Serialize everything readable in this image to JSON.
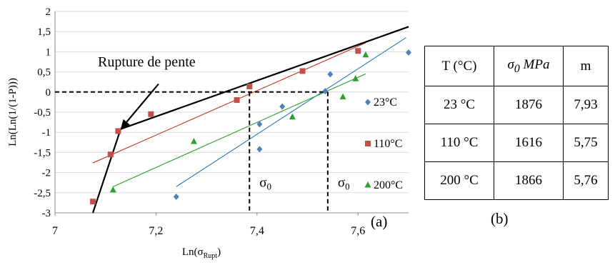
{
  "chart_data": {
    "type": "scatter",
    "xlabel": "Ln(σ",
    "xlabel_sub": "Rupt",
    "xlabel_close": ")",
    "ylabel": "Ln(Ln(1/(1-P)))",
    "xlim": [
      7,
      7.7
    ],
    "ylim": [
      -3,
      2
    ],
    "x_ticks": [
      7,
      7.2,
      7.4,
      7.6
    ],
    "x_tick_labels": [
      "7",
      "7,2",
      "7,4",
      "7,6"
    ],
    "y_ticks": [
      -3,
      -2.5,
      -2,
      -1.5,
      -1,
      -0.5,
      0,
      0.5,
      1,
      1.5,
      2
    ],
    "y_tick_labels": [
      "-3",
      "-2,5",
      "-2",
      "-1,5",
      "-1",
      "-0,5",
      "0",
      "0,5",
      "1",
      "1,5",
      "2"
    ],
    "grid": "horizontal",
    "legend": "right",
    "series": [
      {
        "name": "23°C",
        "marker": "diamond",
        "color": "#4f81bd",
        "points": [
          [
            7.24,
            -2.6
          ],
          [
            7.405,
            -1.42
          ],
          [
            7.405,
            -0.8
          ],
          [
            7.45,
            -0.36
          ],
          [
            7.535,
            0.02
          ],
          [
            7.545,
            0.44
          ],
          [
            7.7,
            0.98
          ]
        ],
        "fit": [
          [
            7.24,
            -2.35
          ],
          [
            7.695,
            1.35
          ]
        ],
        "fit_color": "#1f78b4"
      },
      {
        "name": "110°C",
        "marker": "square",
        "color": "#c0504d",
        "points": [
          [
            7.075,
            -2.72
          ],
          [
            7.11,
            -1.55
          ],
          [
            7.125,
            -0.97
          ],
          [
            7.19,
            -0.55
          ],
          [
            7.36,
            -0.2
          ],
          [
            7.385,
            0.14
          ],
          [
            7.49,
            0.52
          ],
          [
            7.6,
            1.02
          ]
        ],
        "fit": [
          [
            7.075,
            -1.76
          ],
          [
            7.615,
            1.22
          ]
        ],
        "fit_color": "#c0392b"
      },
      {
        "name": "200°C",
        "marker": "triangle",
        "color": "#2ca02c",
        "points": [
          [
            7.115,
            -2.43
          ],
          [
            7.275,
            -1.23
          ],
          [
            7.47,
            -0.62
          ],
          [
            7.57,
            -0.12
          ],
          [
            7.595,
            0.33
          ],
          [
            7.615,
            0.92
          ]
        ],
        "fit": [
          [
            7.115,
            -2.35
          ],
          [
            7.615,
            0.45
          ]
        ],
        "fit_color": "#2ca02c"
      }
    ],
    "annotations": {
      "slope_break_label": "Rupture de pente",
      "sigma0_label": "σ",
      "sigma0_sub": "0",
      "panel_label": "(a)",
      "sigma0_lines_x": [
        7.385,
        7.54
      ],
      "zero_line_y": 0,
      "break_lines": [
        [
          [
            7.075,
            -3.0
          ],
          [
            7.13,
            -0.92
          ]
        ],
        [
          [
            7.13,
            -0.92
          ],
          [
            7.7,
            1.62
          ]
        ]
      ],
      "arrow_from": [
        7.205,
        0.2
      ],
      "arrow_to": [
        7.13,
        -0.92
      ]
    }
  },
  "table": {
    "headers": [
      "T (°C)",
      "σ",
      "m"
    ],
    "header_sigma_sub": "0",
    "header_sigma_unit": "MPa",
    "rows": [
      [
        "23 °C",
        "1876",
        "7,93"
      ],
      [
        "110 °C",
        "1616",
        "5,75"
      ],
      [
        "200 °C",
        "1866",
        "5,76"
      ]
    ]
  },
  "panel_b_label": "(b)"
}
